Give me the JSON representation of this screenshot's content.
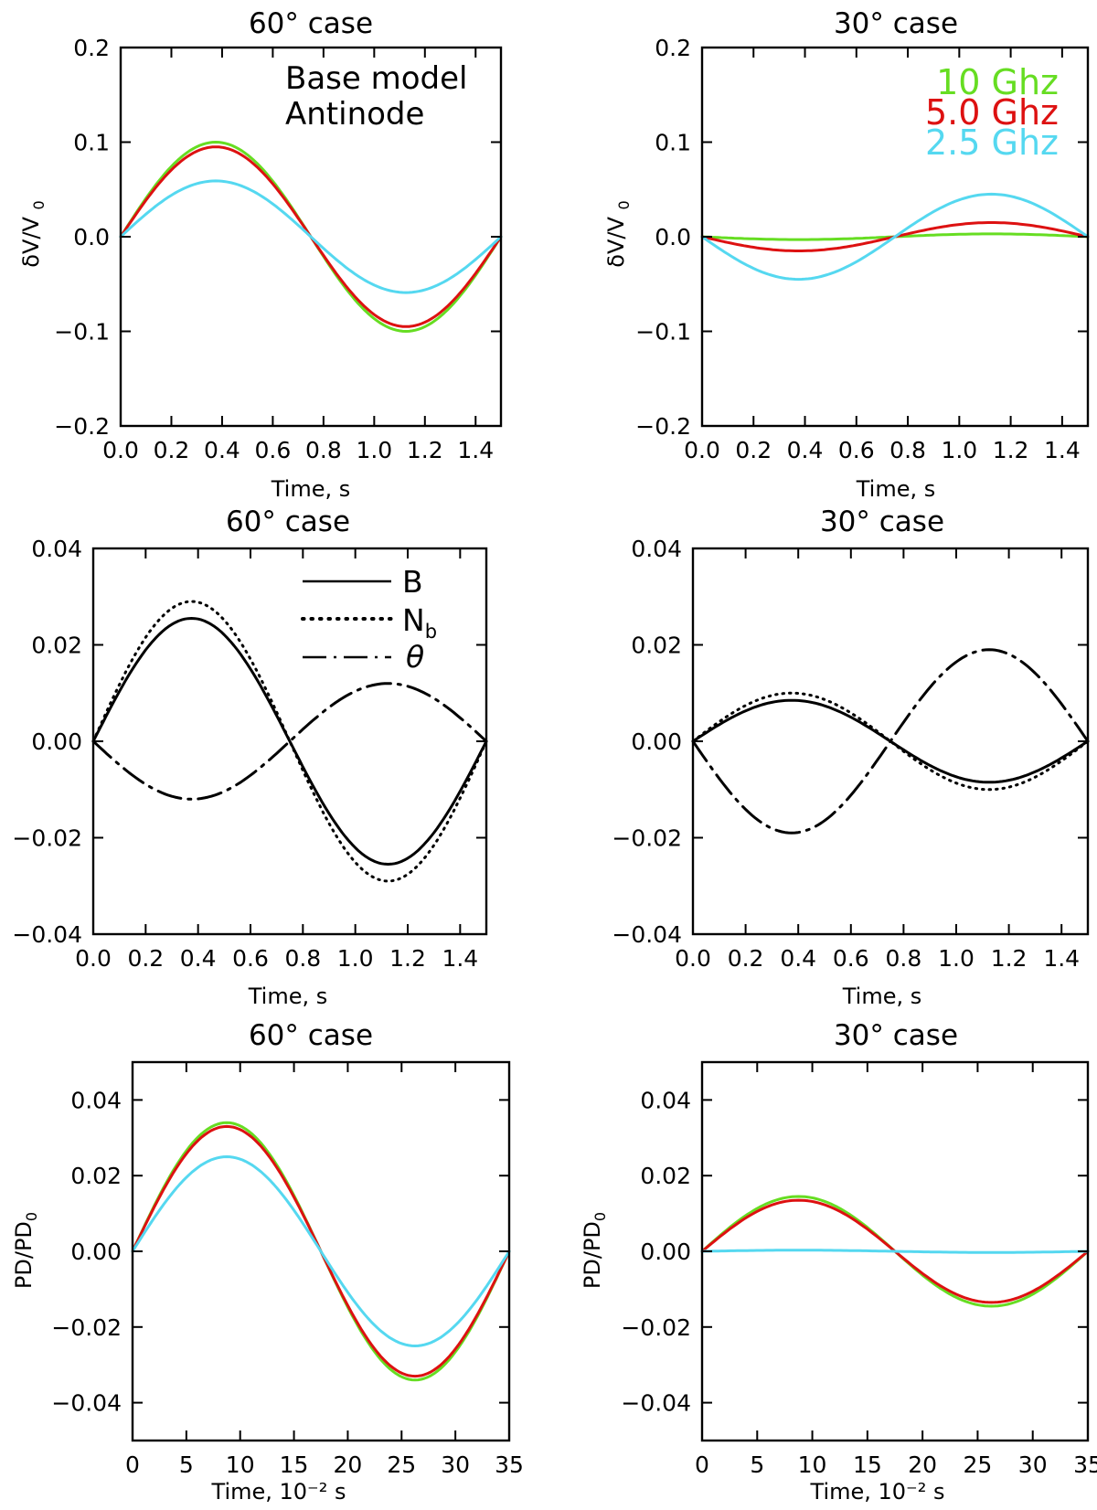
{
  "colors": {
    "f10": "#66dd22",
    "f5": "#dd1111",
    "f25": "#55d8f0",
    "black": "#000000"
  },
  "chart_data": [
    {
      "id": "a",
      "type": "line",
      "title": "60° case",
      "xlabel": "Time, s",
      "ylabel": "δV/V0",
      "xlim": [
        0,
        1.5
      ],
      "ylim": [
        -0.2,
        0.2
      ],
      "xticks": [
        "0.0",
        "0.2",
        "0.4",
        "0.6",
        "0.8",
        "1.0",
        "1.2",
        "1.4"
      ],
      "xtick_values": [
        0,
        0.2,
        0.4,
        0.6,
        0.8,
        1.0,
        1.2,
        1.4
      ],
      "yticks": [
        "−0.2",
        "−0.1",
        "0.0",
        "0.1",
        "0.2"
      ],
      "ytick_values": [
        -0.2,
        -0.1,
        0,
        0.1,
        0.2
      ],
      "annotations": [
        "Base model",
        "Antinode"
      ],
      "series": [
        {
          "name": "10 Ghz",
          "amplitude": 0.1,
          "period": 1.5,
          "style": "solid",
          "color": "#66dd22"
        },
        {
          "name": "5.0 Ghz",
          "amplitude": 0.095,
          "period": 1.5,
          "style": "solid",
          "color": "#dd1111"
        },
        {
          "name": "2.5 Ghz",
          "amplitude": 0.059,
          "period": 1.5,
          "style": "solid",
          "color": "#55d8f0"
        }
      ]
    },
    {
      "id": "b",
      "type": "line",
      "title": "30° case",
      "xlabel": "Time, s",
      "ylabel": "δV/V0",
      "xlim": [
        0,
        1.5
      ],
      "ylim": [
        -0.2,
        0.2
      ],
      "xticks": [
        "0.0",
        "0.2",
        "0.4",
        "0.6",
        "0.8",
        "1.0",
        "1.2",
        "1.4"
      ],
      "xtick_values": [
        0,
        0.2,
        0.4,
        0.6,
        0.8,
        1.0,
        1.2,
        1.4
      ],
      "yticks": [
        "−0.2",
        "−0.1",
        "0.0",
        "0.1",
        "0.2"
      ],
      "ytick_values": [
        -0.2,
        -0.1,
        0,
        0.1,
        0.2
      ],
      "legend": [
        "10 Ghz",
        "5.0 Ghz",
        "2.5 Ghz"
      ],
      "legend_position": "top-right",
      "series": [
        {
          "name": "10 Ghz",
          "amplitude": -0.003,
          "period": 1.5,
          "style": "solid",
          "color": "#66dd22"
        },
        {
          "name": "5.0 Ghz",
          "amplitude": -0.015,
          "period": 1.5,
          "style": "solid",
          "color": "#dd1111"
        },
        {
          "name": "2.5 Ghz",
          "amplitude": -0.045,
          "period": 1.5,
          "style": "solid",
          "color": "#55d8f0"
        }
      ]
    },
    {
      "id": "c",
      "type": "line",
      "title": "60° case",
      "xlabel": "Time, s",
      "ylabel": "",
      "xlim": [
        0,
        1.5
      ],
      "ylim": [
        -0.04,
        0.04
      ],
      "xticks": [
        "0.0",
        "0.2",
        "0.4",
        "0.6",
        "0.8",
        "1.0",
        "1.2",
        "1.4"
      ],
      "xtick_values": [
        0,
        0.2,
        0.4,
        0.6,
        0.8,
        1.0,
        1.2,
        1.4
      ],
      "yticks": [
        "−0.04",
        "−0.02",
        "0.00",
        "0.02",
        "0.04"
      ],
      "ytick_values": [
        -0.04,
        -0.02,
        0,
        0.02,
        0.04
      ],
      "legend": [
        "B",
        "Nb",
        "θ"
      ],
      "legend_position": "top-right",
      "series": [
        {
          "name": "B",
          "amplitude": 0.0255,
          "period": 1.5,
          "style": "solid",
          "color": "#000000"
        },
        {
          "name": "Nb",
          "amplitude": 0.029,
          "period": 1.5,
          "style": "dotted",
          "color": "#000000"
        },
        {
          "name": "θ",
          "amplitude": -0.012,
          "period": 1.5,
          "style": "dashdot",
          "color": "#000000"
        }
      ]
    },
    {
      "id": "d",
      "type": "line",
      "title": "30° case",
      "xlabel": "Time, s",
      "ylabel": "",
      "xlim": [
        0,
        1.5
      ],
      "ylim": [
        -0.04,
        0.04
      ],
      "xticks": [
        "0.0",
        "0.2",
        "0.4",
        "0.6",
        "0.8",
        "1.0",
        "1.2",
        "1.4"
      ],
      "xtick_values": [
        0,
        0.2,
        0.4,
        0.6,
        0.8,
        1.0,
        1.2,
        1.4
      ],
      "yticks": [
        "−0.04",
        "−0.02",
        "0.00",
        "0.02",
        "0.04"
      ],
      "ytick_values": [
        -0.04,
        -0.02,
        0,
        0.02,
        0.04
      ],
      "series": [
        {
          "name": "B",
          "amplitude": 0.0085,
          "period": 1.5,
          "style": "solid",
          "color": "#000000"
        },
        {
          "name": "Nb",
          "amplitude": 0.01,
          "period": 1.5,
          "style": "dotted",
          "color": "#000000"
        },
        {
          "name": "θ",
          "amplitude": -0.019,
          "period": 1.5,
          "style": "dashdot",
          "color": "#000000"
        }
      ]
    },
    {
      "id": "e",
      "type": "line",
      "title": "60° case",
      "xlabel": "Time, 10⁻² s",
      "ylabel": "PD/PD0",
      "xlim": [
        0,
        35
      ],
      "ylim": [
        -0.05,
        0.05
      ],
      "xticks": [
        "0",
        "5",
        "10",
        "15",
        "20",
        "25",
        "30",
        "35"
      ],
      "xtick_values": [
        0,
        5,
        10,
        15,
        20,
        25,
        30,
        35
      ],
      "yticks": [
        "−0.04",
        "−0.02",
        "0.00",
        "0.02",
        "0.04"
      ],
      "ytick_values": [
        -0.04,
        -0.02,
        0,
        0.02,
        0.04
      ],
      "series": [
        {
          "name": "10 Ghz",
          "amplitude": 0.034,
          "period": 35,
          "style": "solid",
          "color": "#66dd22"
        },
        {
          "name": "5.0 Ghz",
          "amplitude": 0.033,
          "period": 35,
          "style": "solid",
          "color": "#dd1111"
        },
        {
          "name": "2.5 Ghz",
          "amplitude": 0.025,
          "period": 35,
          "style": "solid",
          "color": "#55d8f0"
        }
      ]
    },
    {
      "id": "f",
      "type": "line",
      "title": "30° case",
      "xlabel": "Time, 10⁻² s",
      "ylabel": "PD/PD0",
      "xlim": [
        0,
        35
      ],
      "ylim": [
        -0.05,
        0.05
      ],
      "xticks": [
        "0",
        "5",
        "10",
        "15",
        "20",
        "25",
        "30",
        "35"
      ],
      "xtick_values": [
        0,
        5,
        10,
        15,
        20,
        25,
        30,
        35
      ],
      "yticks": [
        "−0.04",
        "−0.02",
        "0.00",
        "0.02",
        "0.04"
      ],
      "ytick_values": [
        -0.04,
        -0.02,
        0,
        0.02,
        0.04
      ],
      "series": [
        {
          "name": "10 Ghz",
          "amplitude": 0.0145,
          "period": 35,
          "style": "solid",
          "color": "#66dd22"
        },
        {
          "name": "5.0 Ghz",
          "amplitude": 0.0135,
          "period": 35,
          "style": "solid",
          "color": "#dd1111"
        },
        {
          "name": "2.5 Ghz",
          "amplitude": 0.0003,
          "period": 35,
          "style": "solid",
          "color": "#55d8f0"
        }
      ]
    }
  ]
}
